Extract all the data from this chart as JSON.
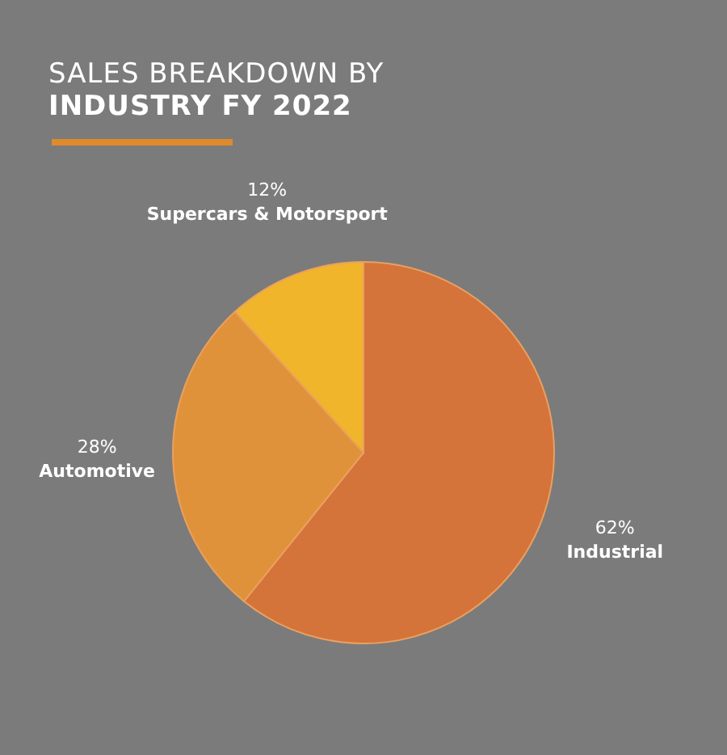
{
  "chart_data": {
    "type": "pie",
    "title": "SALES BREAKDOWN BY",
    "subtitle": "INDUSTRY FY 2022",
    "categories": [
      "Industrial",
      "Automotive",
      "Supercars & Motorsport"
    ],
    "values": [
      62,
      28,
      12
    ],
    "colors": [
      "#d4733a",
      "#e0923a",
      "#f0b52a"
    ],
    "value_labels": [
      "62%",
      "28%",
      "12%"
    ]
  }
}
